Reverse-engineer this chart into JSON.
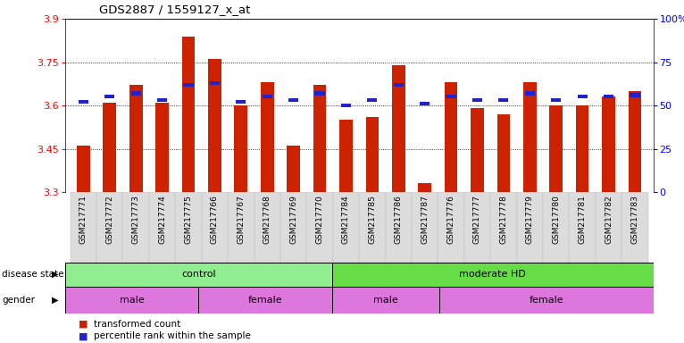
{
  "title": "GDS2887 / 1559127_x_at",
  "samples": [
    "GSM217771",
    "GSM217772",
    "GSM217773",
    "GSM217774",
    "GSM217775",
    "GSM217766",
    "GSM217767",
    "GSM217768",
    "GSM217769",
    "GSM217770",
    "GSM217784",
    "GSM217785",
    "GSM217786",
    "GSM217787",
    "GSM217776",
    "GSM217777",
    "GSM217778",
    "GSM217779",
    "GSM217780",
    "GSM217781",
    "GSM217782",
    "GSM217783"
  ],
  "red_values": [
    3.46,
    3.61,
    3.67,
    3.61,
    3.84,
    3.76,
    3.6,
    3.68,
    3.46,
    3.67,
    3.55,
    3.56,
    3.74,
    3.33,
    3.68,
    3.59,
    3.57,
    3.68,
    3.6,
    3.6,
    3.63,
    3.65
  ],
  "blue_percentiles": [
    52,
    55,
    57,
    53,
    62,
    63,
    52,
    55,
    53,
    57,
    50,
    53,
    62,
    51,
    55,
    53,
    53,
    57,
    53,
    55,
    55,
    56
  ],
  "ylim": [
    3.3,
    3.9
  ],
  "yticks_left": [
    3.3,
    3.45,
    3.6,
    3.75,
    3.9
  ],
  "right_yticks_pct": [
    0,
    25,
    50,
    75,
    100
  ],
  "right_ytick_labels": [
    "0",
    "25",
    "50",
    "75",
    "100%"
  ],
  "disease_groups": [
    {
      "label": "control",
      "start": 0,
      "end": 10,
      "color": "#90EE90"
    },
    {
      "label": "moderate HD",
      "start": 10,
      "end": 22,
      "color": "#66DD44"
    }
  ],
  "gender_groups": [
    {
      "label": "male",
      "start": 0,
      "end": 5
    },
    {
      "label": "female",
      "start": 5,
      "end": 10
    },
    {
      "label": "male",
      "start": 10,
      "end": 14
    },
    {
      "label": "female",
      "start": 14,
      "end": 22
    }
  ],
  "bar_width": 0.5,
  "bar_color": "#CC2200",
  "blue_color": "#2222CC",
  "background_color": "#ffffff"
}
